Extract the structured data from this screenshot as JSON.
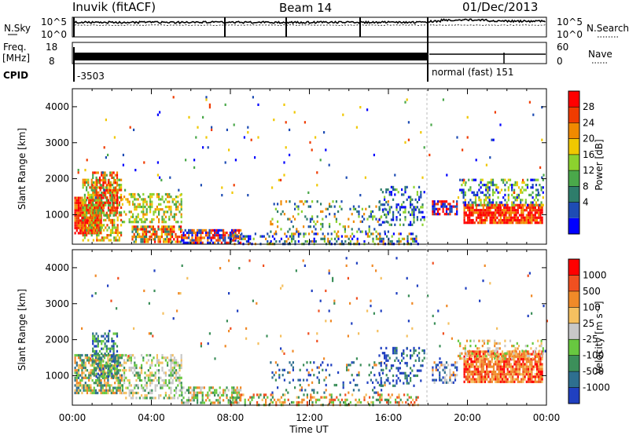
{
  "header": {
    "station": "Inuvik (fitACF)",
    "beam": "Beam 14",
    "date": "01/Dec/2013"
  },
  "panels": {
    "nsky_label": "N.Sky",
    "nsearch_label": "N.Search",
    "freq_label": "Freq.",
    "freq_unit": "[MHz]",
    "nave_label": "Nave",
    "cpid_label": "CPID",
    "cpid_left": "-3503",
    "cpid_right": "normal (fast) 151",
    "noise_ticks_left": [
      "10^5",
      "10^0"
    ],
    "noise_ticks_right": [
      "10^5",
      "10^0"
    ],
    "freq_ticks": [
      "18",
      "8"
    ],
    "nave_ticks": [
      "60",
      "0"
    ]
  },
  "chart_data": [
    {
      "type": "heatmap",
      "name": "Power",
      "ylabel": "Slant Range [km]",
      "xlabel": "",
      "ylim": [
        180,
        4500
      ],
      "xlim": [
        0,
        24
      ],
      "yticks": [
        "1000",
        "2000",
        "3000",
        "4000"
      ],
      "colorbar_label": "Power [dB]",
      "colorbar_ticks": [
        "28",
        "24",
        "20",
        "16",
        "12",
        "8",
        "4"
      ],
      "colorbar_colors": [
        "#0000ff",
        "#1e4cb4",
        "#2e7d6b",
        "#4aa84a",
        "#8cd22e",
        "#f0c800",
        "#f08a00",
        "#f03c00",
        "#ff0000"
      ],
      "scatter_regions": [
        {
          "t": [
            0.1,
            1.5
          ],
          "r": [
            500,
            1500
          ],
          "dens": 0.9,
          "cols": [
            8,
            8,
            7,
            6
          ]
        },
        {
          "t": [
            0.5,
            2.5
          ],
          "r": [
            300,
            2000
          ],
          "dens": 0.55,
          "cols": [
            7,
            6,
            5,
            4,
            3
          ]
        },
        {
          "t": [
            1.0,
            2.3
          ],
          "r": [
            1000,
            2200
          ],
          "dens": 0.6,
          "cols": [
            8,
            7,
            6,
            3
          ]
        },
        {
          "t": [
            2.5,
            5.5
          ],
          "r": [
            800,
            1600
          ],
          "dens": 0.45,
          "cols": [
            6,
            5,
            4,
            3
          ]
        },
        {
          "t": [
            3.0,
            5.5
          ],
          "r": [
            250,
            700
          ],
          "dens": 0.8,
          "cols": [
            8,
            7,
            6,
            5,
            2
          ]
        },
        {
          "t": [
            5.5,
            8.5
          ],
          "r": [
            250,
            600
          ],
          "dens": 0.65,
          "cols": [
            8,
            7,
            6,
            1,
            0
          ]
        },
        {
          "t": [
            8.0,
            17.5
          ],
          "r": [
            200,
            500
          ],
          "dens": 0.35,
          "cols": [
            1,
            0,
            2,
            4,
            6
          ]
        },
        {
          "t": [
            10.0,
            16.0
          ],
          "r": [
            500,
            1400
          ],
          "dens": 0.15,
          "cols": [
            6,
            4,
            2,
            1
          ]
        },
        {
          "t": [
            15.5,
            17.8
          ],
          "r": [
            700,
            1800
          ],
          "dens": 0.3,
          "cols": [
            0,
            1,
            2,
            4
          ]
        },
        {
          "t": [
            18.2,
            19.5
          ],
          "r": [
            1000,
            1400
          ],
          "dens": 0.55,
          "cols": [
            8,
            7,
            0,
            1
          ]
        },
        {
          "t": [
            19.8,
            23.8
          ],
          "r": [
            800,
            1300
          ],
          "dens": 0.85,
          "cols": [
            8,
            8,
            7,
            6
          ]
        },
        {
          "t": [
            19.5,
            23.8
          ],
          "r": [
            1300,
            2000
          ],
          "dens": 0.35,
          "cols": [
            5,
            4,
            3,
            1,
            0
          ]
        },
        {
          "t": [
            0,
            24
          ],
          "r": [
            1500,
            4300
          ],
          "dens": 0.012,
          "cols": [
            0,
            1,
            3,
            5,
            7
          ]
        }
      ]
    },
    {
      "type": "heatmap",
      "name": "Velocity",
      "ylabel": "Slant Range [km]",
      "xlabel": "Time UT",
      "ylim": [
        180,
        4500
      ],
      "xlim": [
        0,
        24
      ],
      "xticks": [
        "00:00",
        "04:00",
        "08:00",
        "12:00",
        "16:00",
        "20:00",
        "00:00"
      ],
      "yticks": [
        "1000",
        "2000",
        "3000",
        "4000"
      ],
      "colorbar_label": "Velocity [m s⁻¹]",
      "colorbar_ticks": [
        "1000",
        "500",
        "100",
        "25",
        "-25",
        "-100",
        "-500",
        "-1000"
      ],
      "colorbar_colors": [
        "#2040c0",
        "#2e6f8f",
        "#3c8f5a",
        "#68c840",
        "#c8c8c8",
        "#f5c060",
        "#f08a28",
        "#f05020",
        "#ff0000"
      ],
      "scatter_regions": [
        {
          "t": [
            0.1,
            2.5
          ],
          "r": [
            500,
            1600
          ],
          "dens": 0.7,
          "cols": [
            2,
            3,
            1,
            5,
            6
          ]
        },
        {
          "t": [
            1.0,
            2.3
          ],
          "r": [
            1000,
            2200
          ],
          "dens": 0.5,
          "cols": [
            2,
            1,
            3,
            0
          ]
        },
        {
          "t": [
            2.5,
            5.5
          ],
          "r": [
            400,
            1600
          ],
          "dens": 0.45,
          "cols": [
            2,
            3,
            4,
            4,
            5
          ]
        },
        {
          "t": [
            5.5,
            8.5
          ],
          "r": [
            250,
            700
          ],
          "dens": 0.55,
          "cols": [
            2,
            3,
            4,
            6
          ]
        },
        {
          "t": [
            8.0,
            17.5
          ],
          "r": [
            200,
            500
          ],
          "dens": 0.3,
          "cols": [
            5,
            6,
            7,
            2,
            3
          ]
        },
        {
          "t": [
            10.0,
            16.0
          ],
          "r": [
            500,
            1400
          ],
          "dens": 0.15,
          "cols": [
            0,
            1,
            2,
            6
          ]
        },
        {
          "t": [
            15.5,
            17.8
          ],
          "r": [
            700,
            1800
          ],
          "dens": 0.3,
          "cols": [
            0,
            0,
            1,
            2
          ]
        },
        {
          "t": [
            18.2,
            19.5
          ],
          "r": [
            800,
            1400
          ],
          "dens": 0.5,
          "cols": [
            0,
            1,
            6,
            4
          ]
        },
        {
          "t": [
            19.8,
            23.8
          ],
          "r": [
            800,
            1700
          ],
          "dens": 0.85,
          "cols": [
            6,
            6,
            7,
            5,
            8
          ]
        },
        {
          "t": [
            19.5,
            23.8
          ],
          "r": [
            1500,
            2000
          ],
          "dens": 0.25,
          "cols": [
            4,
            5,
            6,
            3
          ]
        },
        {
          "t": [
            0,
            24
          ],
          "r": [
            1500,
            4300
          ],
          "dens": 0.012,
          "cols": [
            5,
            6,
            7,
            0,
            2
          ]
        }
      ]
    }
  ]
}
